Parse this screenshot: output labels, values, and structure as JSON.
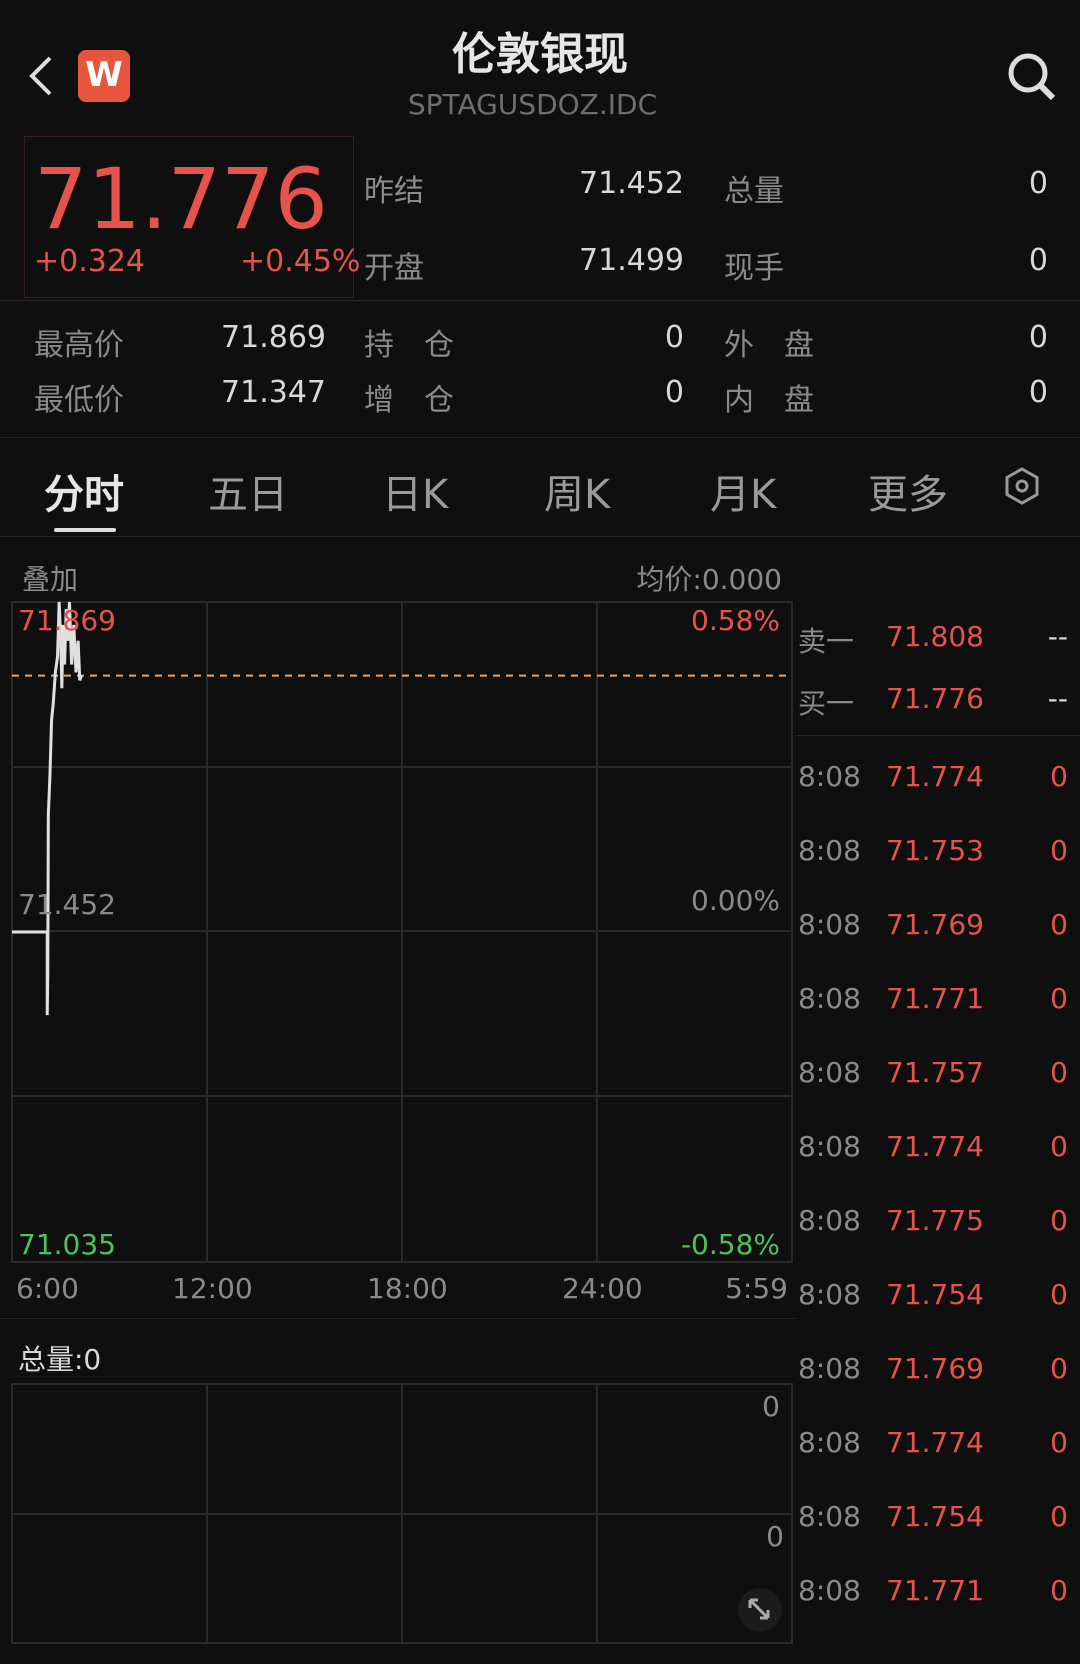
{
  "header": {
    "title": "伦敦银现",
    "code": "SPTAGUSDOZ.IDC",
    "logo_letter": "W",
    "icons": [
      "back-icon",
      "search-icon"
    ]
  },
  "quote": {
    "price": "71.776",
    "change": "+0.324",
    "change_pct": "+0.45%",
    "fields": [
      {
        "label": "昨结",
        "value": "71.452"
      },
      {
        "label": "总量",
        "value": "0"
      },
      {
        "label": "开盘",
        "value": "71.499"
      },
      {
        "label": "现手",
        "value": "0"
      },
      {
        "label": "最高价",
        "value": "71.869"
      },
      {
        "label": "持　仓",
        "value": "0"
      },
      {
        "label": "外　盘",
        "value": "0"
      },
      {
        "label": "最低价",
        "value": "71.347"
      },
      {
        "label": "增　仓",
        "value": "0"
      },
      {
        "label": "内　盘",
        "value": "0"
      }
    ]
  },
  "tabs": [
    "分时",
    "五日",
    "日K",
    "周K",
    "月K",
    "更多"
  ],
  "chart_header": {
    "overlay": "叠加",
    "avg": "均价:0.000"
  },
  "colors": {
    "up": "#e5534b",
    "down": "#4fc05a",
    "line": "#e0e0e0",
    "avg_line": "#e8a36a"
  },
  "chart_data": {
    "type": "line",
    "y_labels": {
      "top": "71.869",
      "mid": "71.452",
      "bottom": "71.035",
      "top_pct": "0.58%",
      "mid_pct": "0.00%",
      "bottom_pct": "-0.58%"
    },
    "ylim": [
      71.035,
      71.869
    ],
    "prev_close": 71.452,
    "current": 71.776,
    "x_ticks": [
      "6:00",
      "12:00",
      "18:00",
      "24:00",
      "5:59"
    ],
    "xlim_minutes_from_open": [
      0,
      1439
    ],
    "points": [
      [
        "6:00",
        71.452
      ],
      [
        "7:05",
        71.452
      ],
      [
        "7:05",
        71.347
      ],
      [
        "7:06",
        71.4
      ],
      [
        "7:07",
        71.6
      ],
      [
        "7:10",
        71.65
      ],
      [
        "7:13",
        71.72
      ],
      [
        "7:16",
        71.74
      ],
      [
        "7:20",
        71.78
      ],
      [
        "7:24",
        71.8
      ],
      [
        "7:27",
        71.869
      ],
      [
        "7:30",
        71.82
      ],
      [
        "7:32",
        71.76
      ],
      [
        "7:34",
        71.84
      ],
      [
        "7:37",
        71.79
      ],
      [
        "7:40",
        71.86
      ],
      [
        "7:43",
        71.82
      ],
      [
        "7:46",
        71.869
      ],
      [
        "7:50",
        71.79
      ],
      [
        "7:54",
        71.84
      ],
      [
        "7:58",
        71.78
      ],
      [
        "8:02",
        71.82
      ],
      [
        "8:05",
        71.77
      ],
      [
        "8:08",
        71.776
      ]
    ]
  },
  "volume": {
    "label": "总量:0",
    "top": "0",
    "mid": "0"
  },
  "orderbook": {
    "ask": {
      "label": "卖一",
      "price": "71.808",
      "vol": "--"
    },
    "bid": {
      "label": "买一",
      "price": "71.776",
      "vol": "--"
    }
  },
  "ticks": [
    [
      "8:08",
      "71.774",
      "0"
    ],
    [
      "8:08",
      "71.753",
      "0"
    ],
    [
      "8:08",
      "71.769",
      "0"
    ],
    [
      "8:08",
      "71.771",
      "0"
    ],
    [
      "8:08",
      "71.757",
      "0"
    ],
    [
      "8:08",
      "71.774",
      "0"
    ],
    [
      "8:08",
      "71.775",
      "0"
    ],
    [
      "8:08",
      "71.754",
      "0"
    ],
    [
      "8:08",
      "71.769",
      "0"
    ],
    [
      "8:08",
      "71.774",
      "0"
    ],
    [
      "8:08",
      "71.754",
      "0"
    ],
    [
      "8:08",
      "71.771",
      "0"
    ]
  ]
}
